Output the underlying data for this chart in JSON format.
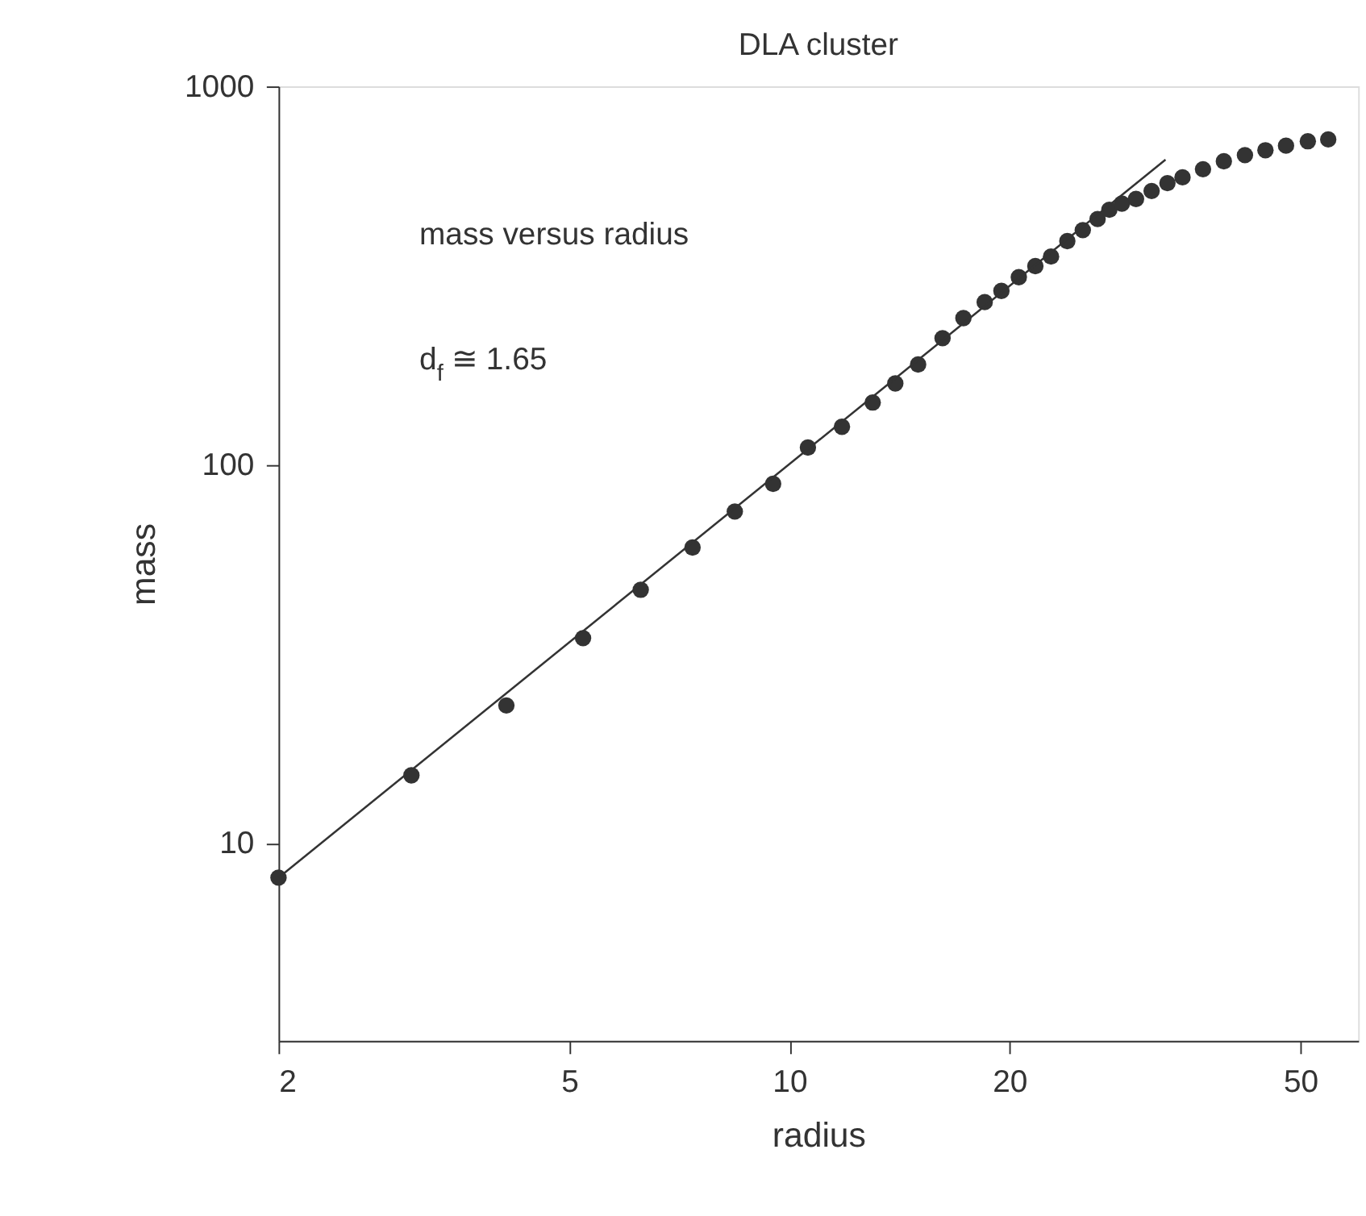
{
  "chart_data": {
    "type": "scatter",
    "title": "DLA cluster",
    "xlabel": "radius",
    "ylabel": "mass",
    "annotations": [
      "mass versus radius",
      "d$_{f}$ ≅ 1.65"
    ],
    "log": "xy",
    "xlim": [
      2,
      60
    ],
    "ylim": [
      3,
      1000
    ],
    "xticks": [
      2,
      5,
      10,
      20,
      50
    ],
    "yticks": [
      10,
      100,
      1000
    ],
    "grid": false,
    "series": [
      {
        "marker": "circle",
        "color": "#333333",
        "x": [
          2,
          3.04,
          4.1,
          5.22,
          6.26,
          7.37,
          8.42,
          9.5,
          10.6,
          11.8,
          13.0,
          13.96,
          15.0,
          16.2,
          17.3,
          18.5,
          19.5,
          20.6,
          21.7,
          22.8,
          24.0,
          25.2,
          26.4,
          27.4,
          28.5,
          29.8,
          31.3,
          32.9,
          34.5,
          36.8,
          39.3,
          42.0,
          44.8,
          47.8,
          51.2,
          54.6
        ],
        "values": [
          8.1,
          15.1,
          23.1,
          34.8,
          46.7,
          60.4,
          75.2,
          89,
          111,
          126,
          146,
          164,
          184,
          216,
          244,
          269,
          288,
          313,
          335,
          355,
          390,
          417,
          446,
          472,
          490,
          504,
          529,
          555,
          575,
          604,
          634,
          658,
          678,
          697,
          716,
          724
        ]
      },
      {
        "type": "line",
        "color": "#333333",
        "line_style": "solid",
        "x": [
          2,
          32.7
        ],
        "values": [
          8.1,
          640
        ]
      }
    ]
  }
}
